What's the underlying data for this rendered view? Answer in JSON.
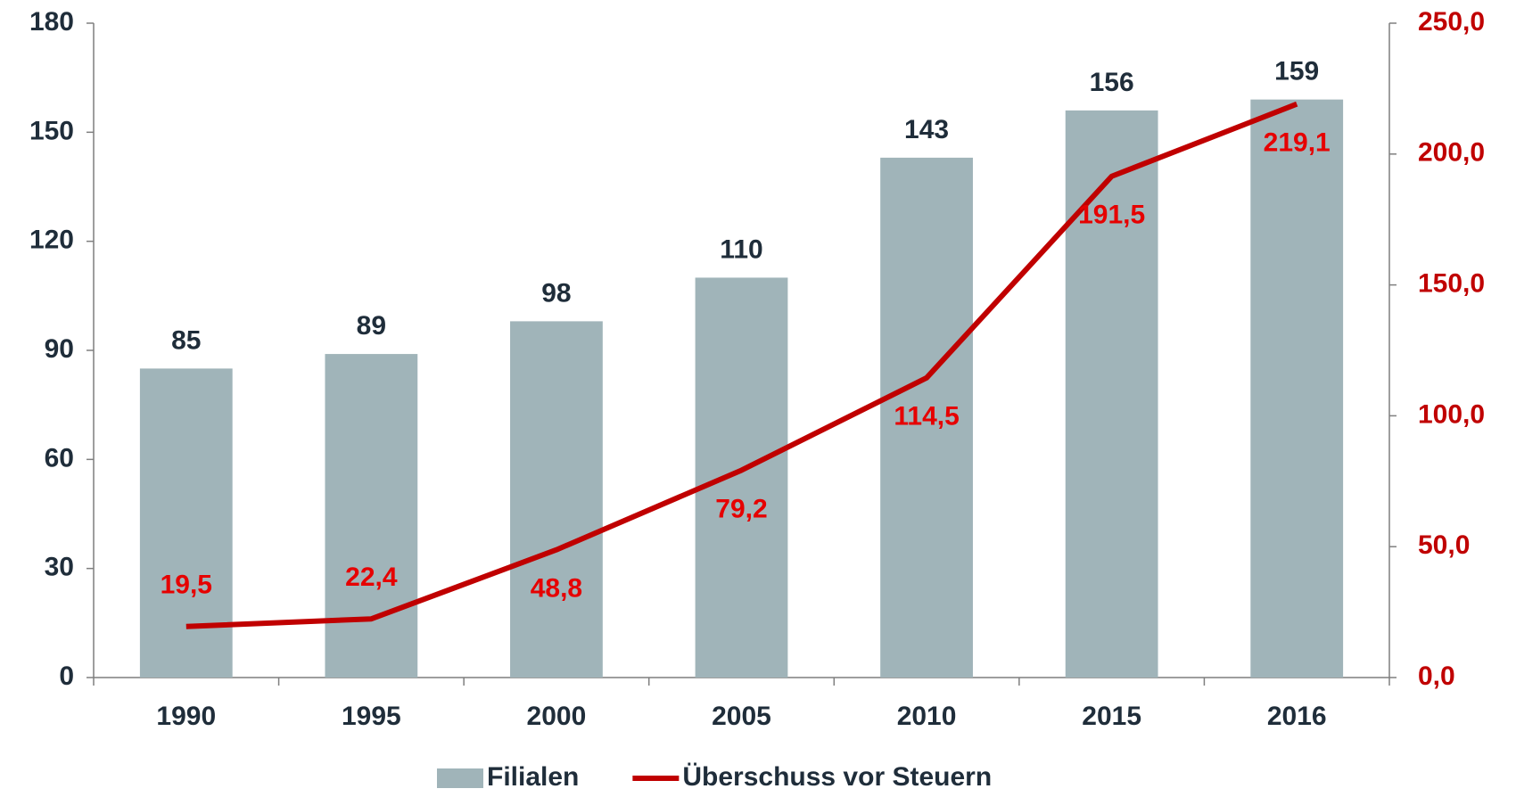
{
  "chart_data": {
    "type": "bar",
    "categories": [
      "1990",
      "1995",
      "2000",
      "2005",
      "2010",
      "2015",
      "2016"
    ],
    "series": [
      {
        "name": "Filialen",
        "type": "bar",
        "color": "#a0b4b9",
        "values": [
          85,
          89,
          98,
          110,
          143,
          156,
          159
        ]
      },
      {
        "name": "Überschuss vor Steuern",
        "type": "line",
        "axis": "y2",
        "color": "#c00000",
        "values": [
          19.5,
          22.4,
          48.8,
          79.2,
          114.5,
          191.5,
          219.1
        ],
        "value_labels": [
          "19,5",
          "22,4",
          "48,8",
          "79,2",
          "114,5",
          "191,5",
          "219,1"
        ]
      }
    ],
    "ylim": [
      0,
      180
    ],
    "yticks": [
      0,
      30,
      60,
      90,
      120,
      150,
      180
    ],
    "y2lim": [
      0,
      250
    ],
    "y2ticks": [
      {
        "value": 0,
        "label": "0,0"
      },
      {
        "value": 50,
        "label": "50,0"
      },
      {
        "value": 100,
        "label": "100,0"
      },
      {
        "value": 150,
        "label": "150,0"
      },
      {
        "value": 200,
        "label": "200,0"
      },
      {
        "value": 250,
        "label": "250,0"
      }
    ],
    "legend": "bottom"
  }
}
